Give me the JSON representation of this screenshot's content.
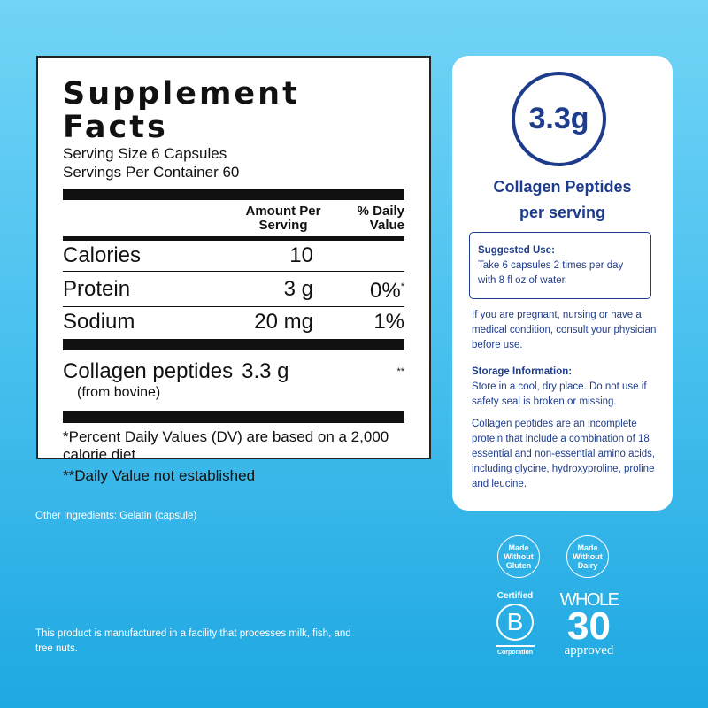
{
  "facts": {
    "title": "Supplement Facts",
    "serving_size": "Serving Size 6 Capsules",
    "servings_per_container": "Servings Per Container 60",
    "col_amount": "Amount Per Serving",
    "col_dv": "% Daily Value",
    "rows": [
      {
        "name": "Calories",
        "amount": "10",
        "dv": ""
      },
      {
        "name": "Protein",
        "amount": "3 g",
        "dv": "0%",
        "mark": "*"
      },
      {
        "name": "Sodium",
        "amount": "20 mg",
        "dv": "1%"
      }
    ],
    "collagen": {
      "name": "Collagen peptides",
      "amount": "3.3 g",
      "dv": "**",
      "source": "(from bovine)"
    },
    "footnote1": "*Percent Daily Values (DV) are based on a 2,000 calorie diet",
    "footnote2": "**Daily Value not established"
  },
  "card": {
    "amount": "3.3g",
    "title1": "Collagen Peptides",
    "title2": "per serving",
    "suggested_title": "Suggested Use:",
    "suggested_text": "Take 6 capsules 2 times per day with 8 fl oz of water.",
    "warning": "If you are pregnant, nursing or have a medical condition, consult your physician before use.",
    "storage_title": "Storage Information:",
    "storage_text": "Store in a cool, dry place. Do not use if safety seal is broken or missing.",
    "info": "Collagen peptides are an incomplete protein that include a combination of 18 essential and non-essential amino acids, including glycine, hydroxyproline, proline and leucine."
  },
  "other_ingredients": "Other Ingredients: Gelatin (capsule)",
  "facility": "This product is manufactured in a facility that processes milk, fish, and tree nuts.",
  "badges": {
    "gluten": "Made Without Gluten",
    "dairy": "Made Without Dairy",
    "bcorp_top": "Certified",
    "bcorp_letter": "B",
    "bcorp_bottom": "Corporation",
    "whole30_top": "WHOLE",
    "whole30_num": "30",
    "whole30_bottom": "approved"
  },
  "colors": {
    "navy": "#1e3c8c",
    "bg_top": "#72d4f6",
    "bg_bottom": "#1ea8e2"
  }
}
